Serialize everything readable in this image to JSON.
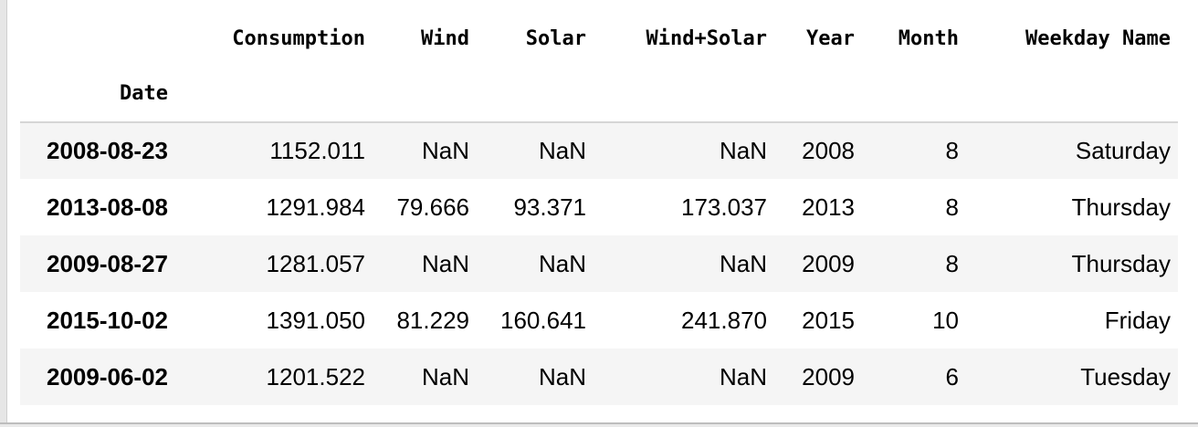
{
  "table": {
    "index_name": "Date",
    "columns": [
      "Consumption",
      "Wind",
      "Solar",
      "Wind+Solar",
      "Year",
      "Month",
      "Weekday Name"
    ],
    "rows": [
      {
        "date": "2008-08-23",
        "values": [
          "1152.011",
          "NaN",
          "NaN",
          "NaN",
          "2008",
          "8",
          "Saturday"
        ]
      },
      {
        "date": "2013-08-08",
        "values": [
          "1291.984",
          "79.666",
          "93.371",
          "173.037",
          "2013",
          "8",
          "Thursday"
        ]
      },
      {
        "date": "2009-08-27",
        "values": [
          "1281.057",
          "NaN",
          "NaN",
          "NaN",
          "2009",
          "8",
          "Thursday"
        ]
      },
      {
        "date": "2015-10-02",
        "values": [
          "1391.050",
          "81.229",
          "160.641",
          "241.870",
          "2015",
          "10",
          "Friday"
        ]
      },
      {
        "date": "2009-06-02",
        "values": [
          "1201.522",
          "NaN",
          "NaN",
          "NaN",
          "2009",
          "6",
          "Tuesday"
        ]
      }
    ]
  },
  "colors": {
    "stripe": "#f5f5f5",
    "header_rule": "#d6d6d6",
    "text": "#000000"
  }
}
